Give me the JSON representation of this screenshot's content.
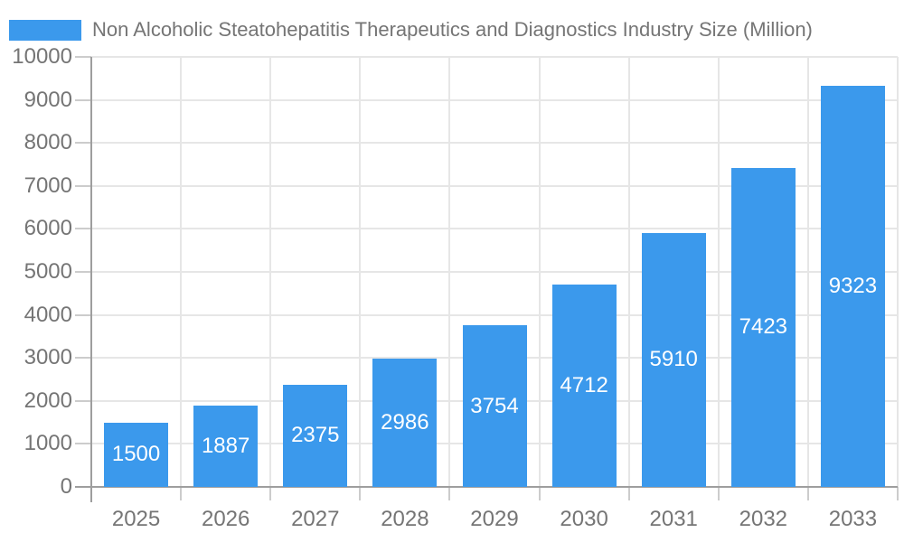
{
  "chart_data": {
    "type": "bar",
    "title": "Non Alcoholic Steatohepatitis Therapeutics and Diagnostics Industry Size (Million)",
    "xlabel": "",
    "ylabel": "",
    "categories": [
      "2025",
      "2026",
      "2027",
      "2028",
      "2029",
      "2030",
      "2031",
      "2032",
      "2033"
    ],
    "values": [
      1500,
      1887,
      2375,
      2986,
      3754,
      4712,
      5910,
      7423,
      9323
    ],
    "bar_value_labels": [
      "1500",
      "1887",
      "2375",
      "2986",
      "3754",
      "4712",
      "5910",
      "7423",
      "9323"
    ],
    "ylim": [
      0,
      10000
    ],
    "yticks": [
      0,
      1000,
      2000,
      3000,
      4000,
      5000,
      6000,
      7000,
      8000,
      9000,
      10000
    ],
    "ytick_labels": [
      "0",
      "1000",
      "2000",
      "3000",
      "4000",
      "5000",
      "6000",
      "7000",
      "8000",
      "9000",
      "10000"
    ],
    "grid": true,
    "legend_position": "top-left",
    "legend": {
      "label": "Non Alcoholic Steatohepatitis Therapeutics and Diagnostics Industry Size (Million)"
    },
    "colors": {
      "bar": "#3B99EC",
      "bar_label_text": "#FFFFFF",
      "axis_text": "#757575",
      "gridline": "#E6E6E6",
      "axis_line": "#9E9E9E",
      "tick": "#CCCCCC",
      "background": "#FFFFFF"
    }
  }
}
